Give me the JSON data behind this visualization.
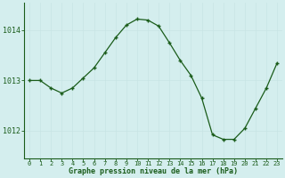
{
  "x": [
    0,
    1,
    2,
    3,
    4,
    5,
    6,
    7,
    8,
    9,
    10,
    11,
    12,
    13,
    14,
    15,
    16,
    17,
    18,
    19,
    20,
    21,
    22,
    23
  ],
  "y": [
    1013.0,
    1013.0,
    1012.85,
    1012.75,
    1012.85,
    1013.05,
    1013.25,
    1013.55,
    1013.85,
    1014.1,
    1014.22,
    1014.2,
    1014.08,
    1013.75,
    1013.4,
    1013.1,
    1012.65,
    1011.92,
    1011.83,
    1011.83,
    1012.05,
    1012.45,
    1012.85,
    1013.35
  ],
  "line_color": "#1a5c1a",
  "marker_color": "#1a5c1a",
  "bg_color": "#d4eeee",
  "grid_color_h": "#c8e4e4",
  "grid_color_v": "#c8e4e4",
  "axis_color": "#1a5c1a",
  "xlabel": "Graphe pression niveau de la mer (hPa)",
  "yticks": [
    1012,
    1013,
    1014
  ],
  "xticks": [
    0,
    1,
    2,
    3,
    4,
    5,
    6,
    7,
    8,
    9,
    10,
    11,
    12,
    13,
    14,
    15,
    16,
    17,
    18,
    19,
    20,
    21,
    22,
    23
  ],
  "ylim": [
    1011.45,
    1014.55
  ],
  "xlim": [
    -0.5,
    23.5
  ],
  "figsize": [
    3.2,
    2.0
  ],
  "dpi": 100,
  "xlabel_fontsize": 6.0,
  "ytick_fontsize": 6.0,
  "xtick_fontsize": 5.0
}
